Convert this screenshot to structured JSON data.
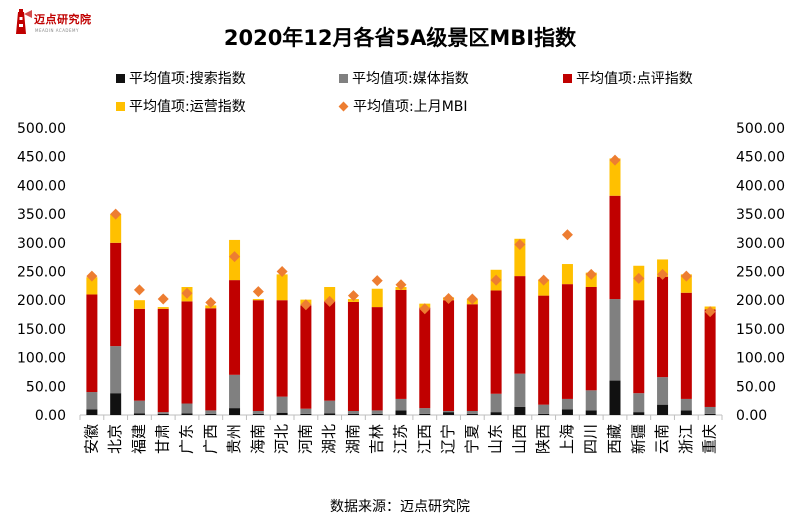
{
  "brand": {
    "name": "迈点研究院",
    "tagline": "MEADIN ACADEMY",
    "accent_color": "#c00000",
    "icon": "lighthouse-logo-icon"
  },
  "source_text": "数据来源：迈点研究院",
  "chart_data": {
    "type": "bar",
    "stacked": true,
    "title": "2020年12月各省5A级景区MBI指数",
    "categories": [
      "安徽",
      "北京",
      "福建",
      "甘肃",
      "广东",
      "广西",
      "贵州",
      "海南",
      "河北",
      "河南",
      "湖北",
      "湖南",
      "吉林",
      "江苏",
      "江西",
      "辽宁",
      "宁夏",
      "山东",
      "山西",
      "陕西",
      "上海",
      "四川",
      "西藏",
      "新疆",
      "云南",
      "浙江",
      "重庆"
    ],
    "series": [
      {
        "name": "平均值项:搜索指数",
        "color": "#111111",
        "marker": "square",
        "values": [
          10,
          38,
          3,
          2,
          3,
          2,
          12,
          2,
          4,
          2,
          3,
          2,
          2,
          8,
          2,
          5,
          2,
          5,
          14,
          2,
          10,
          8,
          60,
          5,
          18,
          8,
          2
        ]
      },
      {
        "name": "平均值项:媒体指数",
        "color": "#808080",
        "marker": "square",
        "values": [
          30,
          82,
          22,
          3,
          17,
          6,
          58,
          5,
          28,
          9,
          22,
          5,
          6,
          20,
          10,
          2,
          5,
          32,
          58,
          16,
          18,
          35,
          142,
          33,
          48,
          20,
          12
        ]
      },
      {
        "name": "平均值项:点评指数",
        "color": "#c00000",
        "marker": "square",
        "values": [
          170,
          180,
          160,
          180,
          178,
          178,
          165,
          193,
          168,
          180,
          173,
          190,
          180,
          190,
          175,
          193,
          186,
          180,
          170,
          190,
          200,
          180,
          180,
          162,
          175,
          185,
          170
        ]
      },
      {
        "name": "平均值项:运营指数",
        "color": "#ffc000",
        "marker": "square",
        "values": [
          30,
          50,
          15,
          3,
          25,
          5,
          70,
          2,
          45,
          10,
          25,
          5,
          32,
          5,
          7,
          5,
          9,
          36,
          65,
          28,
          35,
          25,
          65,
          60,
          30,
          32,
          5
        ]
      }
    ],
    "line_series": {
      "name": "平均值项:上月MBI",
      "color": "#ed7d31",
      "marker": "diamond",
      "values": [
        242,
        350,
        218,
        202,
        212,
        196,
        276,
        215,
        250,
        192,
        198,
        208,
        234,
        227,
        185,
        203,
        202,
        235,
        297,
        235,
        314,
        245,
        444,
        238,
        245,
        242,
        180
      ]
    },
    "ylim": [
      0,
      500
    ],
    "yticks": [
      "0.00",
      "50.00",
      "100.00",
      "150.00",
      "200.00",
      "250.00",
      "300.00",
      "350.00",
      "400.00",
      "450.00",
      "500.00"
    ],
    "secondary_axis": true,
    "grid": false,
    "legend_position": "top",
    "xlabel": "",
    "ylabel": ""
  }
}
